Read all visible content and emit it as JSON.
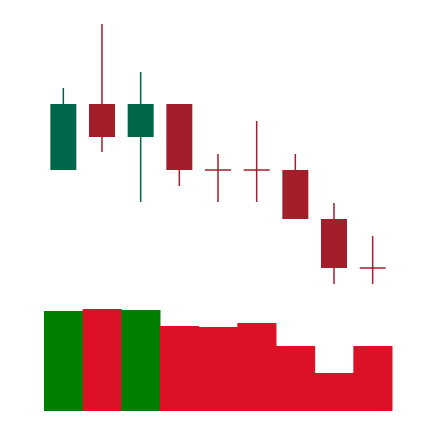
{
  "chart_data": {
    "type": "candlestick",
    "open": [
      130,
      196,
      163,
      196,
      130,
      130,
      130,
      81,
      32
    ],
    "high": [
      212,
      276,
      228,
      196,
      146,
      179,
      146,
      97,
      64
    ],
    "low": [
      130,
      148,
      98,
      114,
      98,
      98,
      81,
      16,
      16
    ],
    "close": [
      196,
      163,
      196,
      130,
      130,
      130,
      81,
      32,
      32
    ],
    "volume": [
      100,
      102,
      101,
      85,
      84,
      88,
      65,
      38,
      65
    ],
    "ylim": [
      0,
      300
    ],
    "volume_ylim": [
      0,
      110
    ],
    "up_color": "#00664a",
    "down_color": "#a31d2b",
    "volume_up_color": "#008000",
    "volume_down_color": "#dd1125"
  }
}
